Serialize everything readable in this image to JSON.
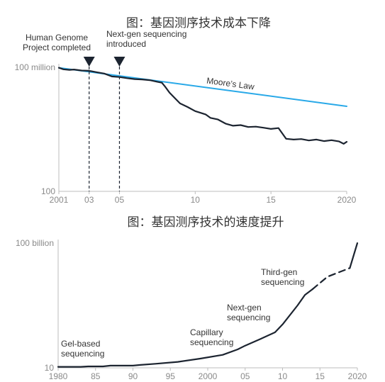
{
  "chart_data": [
    {
      "type": "line",
      "title": "图：基因测序技术成本下降",
      "y_scale": "log",
      "ylim": [
        100,
        100000000
      ],
      "xlim": [
        2001,
        2020
      ],
      "y_ticks": [
        {
          "value": 100,
          "label": "100"
        },
        {
          "value": 100000000,
          "label": "100 million"
        }
      ],
      "x_ticks": [
        {
          "value": 2001,
          "label": "2001"
        },
        {
          "value": 2003,
          "label": "03"
        },
        {
          "value": 2005,
          "label": "05"
        },
        {
          "value": 2010,
          "label": "10"
        },
        {
          "value": 2015,
          "label": "15"
        },
        {
          "value": 2020,
          "label": "2020"
        }
      ],
      "series": [
        {
          "name": "Moore's Law",
          "color": "#29a9e8",
          "style": "solid",
          "x": [
            2001,
            2020
          ],
          "y": [
            95000000,
            1300000
          ]
        },
        {
          "name": "",
          "color": "#1c2430",
          "style": "solid",
          "x": [
            2001,
            2001.3,
            2001.7,
            2002,
            2002.5,
            2003,
            2003.5,
            2004,
            2004.5,
            2005,
            2005.5,
            2006,
            2006.5,
            2007,
            2007.5,
            2007.8,
            2008,
            2008.3,
            2008.7,
            2009,
            2009.5,
            2010,
            2010.3,
            2010.7,
            2011,
            2011.5,
            2012,
            2012.5,
            2013,
            2013.5,
            2014,
            2014.5,
            2015,
            2015.5,
            2016,
            2016.5,
            2017,
            2017.5,
            2018,
            2018.5,
            2019,
            2019.5,
            2019.8,
            2020
          ],
          "y": [
            95000000,
            80000000,
            75000000,
            78000000,
            70000000,
            68000000,
            58000000,
            50000000,
            36000000,
            34000000,
            30000000,
            27000000,
            26000000,
            24000000,
            20000000,
            18000000,
            12000000,
            6000000,
            3000000,
            1800000,
            1200000,
            760000,
            650000,
            520000,
            360000,
            300000,
            190000,
            150000,
            160000,
            130000,
            135000,
            120000,
            105000,
            115000,
            35000,
            32000,
            34000,
            29000,
            32000,
            27000,
            30000,
            26000,
            20000,
            25000
          ]
        }
      ],
      "annotations": [
        {
          "x": 2003,
          "lines": [
            "Human Genome",
            "Project completed"
          ],
          "marker": "triangle-down",
          "dashed_line": true
        },
        {
          "x": 2005,
          "lines": [
            "Next-gen sequencing",
            "introduced"
          ],
          "marker": "triangle-down",
          "dashed_line": true
        }
      ],
      "series_labels": [
        {
          "text": "Moore’s Law",
          "series": 0
        }
      ]
    },
    {
      "type": "line",
      "title": "图：基因测序技术的速度提升",
      "y_scale": "log",
      "ylim": [
        10,
        100000000000
      ],
      "xlim": [
        1980,
        2020
      ],
      "y_ticks": [
        {
          "value": 10,
          "label": "10"
        },
        {
          "value": 100000000000,
          "label": "100 billion"
        }
      ],
      "x_ticks": [
        {
          "value": 1980,
          "label": "1980"
        },
        {
          "value": 1985,
          "label": "85"
        },
        {
          "value": 1990,
          "label": "90"
        },
        {
          "value": 1995,
          "label": "95"
        },
        {
          "value": 2000,
          "label": "2000"
        },
        {
          "value": 2005,
          "label": "05"
        },
        {
          "value": 2010,
          "label": "10"
        },
        {
          "value": 2015,
          "label": "15"
        },
        {
          "value": 2020,
          "label": "2020"
        }
      ],
      "series": [
        {
          "name": "",
          "color": "#1c2430",
          "style": "solid",
          "x": [
            1980,
            1983,
            1984,
            1986,
            1987,
            1990,
            1991,
            1993,
            1996,
            1999,
            2002,
            2004,
            2005,
            2007,
            2009,
            2010,
            2012,
            2013,
            2014
          ],
          "y": [
            12,
            12,
            13,
            13,
            15,
            15,
            17,
            21,
            30,
            55,
            110,
            300,
            600,
            2000,
            7000,
            30000,
            1000000,
            7000000,
            20000000
          ]
        },
        {
          "name": "",
          "color": "#1c2430",
          "style": "dashed",
          "x": [
            2014,
            2016,
            2019
          ],
          "y": [
            20000000,
            200000000,
            1000000000
          ]
        },
        {
          "name": "",
          "color": "#1c2430",
          "style": "solid",
          "x": [
            2019,
            2020
          ],
          "y": [
            1000000000,
            100000000000
          ]
        }
      ],
      "annotations": [
        {
          "x": 1980.5,
          "lines": [
            "Gel-based",
            "sequencing"
          ]
        },
        {
          "x": 2000,
          "lines": [
            "Capillary",
            "sequencing"
          ]
        },
        {
          "x": 2005.3,
          "lines": [
            "Next-gen",
            "sequencing"
          ]
        },
        {
          "x": 2010.5,
          "lines": [
            "Third-gen",
            "sequencing"
          ]
        }
      ]
    }
  ]
}
